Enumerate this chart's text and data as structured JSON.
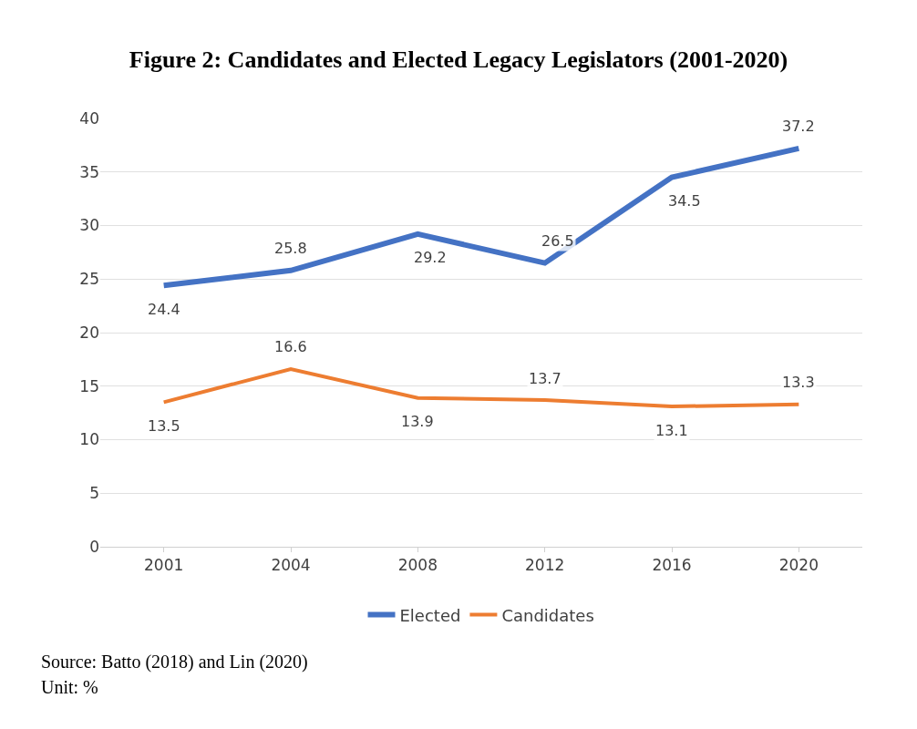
{
  "chart_data": {
    "type": "line",
    "title": "Figure 2: Candidates and Elected Legacy Legislators (2001-2020)",
    "categories": [
      "2001",
      "2004",
      "2008",
      "2012",
      "2016",
      "2020"
    ],
    "series": [
      {
        "name": "Elected",
        "color": "#4472c4",
        "values": [
          24.4,
          25.8,
          29.2,
          26.5,
          34.5,
          37.2
        ]
      },
      {
        "name": "Candidates",
        "color": "#ed7d31",
        "values": [
          13.5,
          16.6,
          13.9,
          13.7,
          13.1,
          13.3
        ]
      }
    ],
    "ylim": [
      0,
      40
    ],
    "yticks": [
      0,
      5,
      10,
      15,
      20,
      25,
      30,
      35,
      40
    ],
    "grid": "y",
    "legend": "bottom",
    "data_labels": true,
    "marker": "none",
    "line_style": "solid",
    "annotations": [
      "Source: Batto (2018) and Lin (2020)",
      "Unit: %"
    ]
  }
}
